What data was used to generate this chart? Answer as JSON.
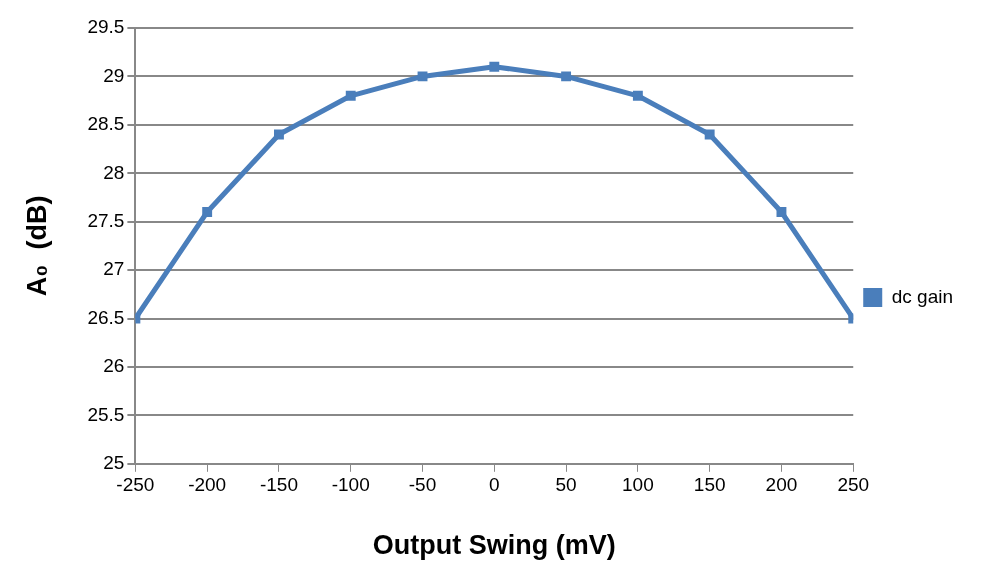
{
  "chart_data": {
    "type": "line",
    "xlabel": "Output Swing (mV)",
    "ylabel": "A₀  (dB)",
    "x": [
      -250,
      -200,
      -150,
      -100,
      -50,
      0,
      50,
      100,
      150,
      200,
      250
    ],
    "series": [
      {
        "name": "dc gain",
        "color": "#4a7ebb",
        "values": [
          26.5,
          27.6,
          28.4,
          28.8,
          29.0,
          29.1,
          29.0,
          28.8,
          28.4,
          27.6,
          26.5
        ]
      }
    ],
    "xlim": [
      -250,
      250
    ],
    "xticks": [
      -250,
      -200,
      -150,
      -100,
      -50,
      0,
      50,
      100,
      150,
      200,
      250
    ],
    "ylim": [
      25,
      29.5
    ],
    "yticks": [
      25,
      25.5,
      26,
      26.5,
      27,
      27.5,
      28,
      28.5,
      29,
      29.5
    ],
    "grid": "y",
    "legend": "right",
    "marker": "square",
    "line_style": "solid"
  }
}
